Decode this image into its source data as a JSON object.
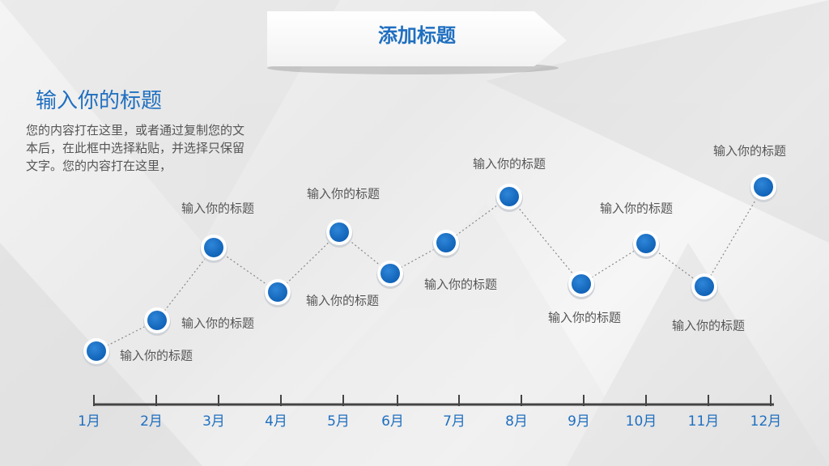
{
  "header": {
    "title": "添加标题"
  },
  "intro": {
    "heading": "输入你的标题",
    "body": "您的内容打在这里，或者通过复制您的文本后，在此框中选择粘贴，并选择只保留文字。您的内容打在这里，"
  },
  "timeline": {
    "labels": [
      "输入你的标题",
      "输入你的标题",
      "输入你的标题",
      "输入你的标题",
      "输入你的标题",
      "输入你的标题",
      "输入你的标题",
      "输入你的标题",
      "输入你的标题",
      "输入你的标题",
      "输入你的标题"
    ],
    "months": [
      "1月",
      "2月",
      "3月",
      "4月",
      "5月",
      "6月",
      "7月",
      "8月",
      "9月",
      "10月",
      "11月",
      "12月"
    ]
  }
}
